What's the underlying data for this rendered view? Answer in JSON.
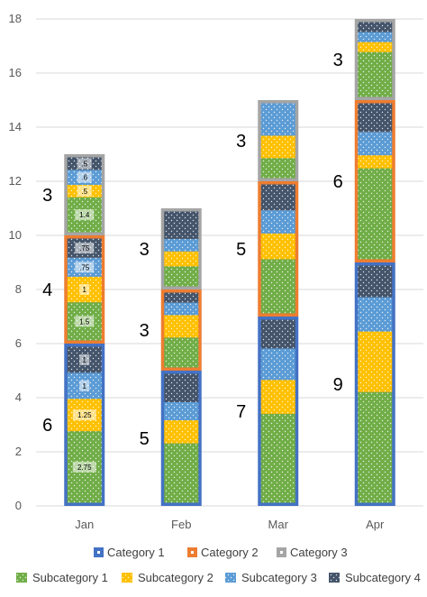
{
  "chart_data": {
    "type": "bar",
    "stacked": true,
    "title": "",
    "xlabel": "",
    "ylabel": "",
    "ylim": [
      0,
      18
    ],
    "ytick_step": 2,
    "grid": true,
    "categories": [
      "Jan",
      "Feb",
      "Mar",
      "Apr"
    ],
    "groups": [
      {
        "name": "Category 1",
        "color": "#4472C4",
        "values": [
          6,
          5,
          7,
          9
        ],
        "subvalues": [
          [
            2.75,
            1.25,
            1,
            1
          ],
          [
            2.3,
            0.9,
            0.7,
            1.1
          ],
          [
            3.4,
            1.3,
            1.2,
            1.1
          ],
          [
            4.2,
            2.3,
            1.3,
            1.2
          ]
        ]
      },
      {
        "name": "Category 2",
        "color": "#ED7D31",
        "values": [
          4,
          3,
          5,
          6
        ],
        "subvalues": [
          [
            1.5,
            1,
            0.75,
            0.75
          ],
          [
            1.2,
            0.9,
            0.5,
            0.4
          ],
          [
            2.1,
            1,
            0.9,
            1
          ],
          [
            3.5,
            0.5,
            0.9,
            1.1
          ]
        ]
      },
      {
        "name": "Category 3",
        "color": "#A5A5A5",
        "values": [
          3,
          3,
          3,
          3
        ],
        "subvalues": [
          [
            1.4,
            0.5,
            0.6,
            0.5
          ],
          [
            0.8,
            0.6,
            0.5,
            1.1
          ],
          [
            0.8,
            0.9,
            1.3,
            0
          ],
          [
            1.8,
            0.4,
            0.4,
            0.4
          ]
        ]
      }
    ],
    "segment_labels": [
      [
        "2.75",
        "1.25",
        "1",
        "1",
        "1.5",
        "1",
        ".75",
        ".75",
        "1.4",
        ".5",
        ".6",
        ".5"
      ],
      [],
      [],
      []
    ],
    "subcategories": [
      {
        "name": "Subcategory 1",
        "color": "#70AD47"
      },
      {
        "name": "Subcategory 2",
        "color": "#FFC000"
      },
      {
        "name": "Subcategory 3",
        "color": "#5B9BD5"
      },
      {
        "name": "Subcategory 4",
        "color": "#44546A"
      }
    ],
    "legend": "bottom"
  }
}
